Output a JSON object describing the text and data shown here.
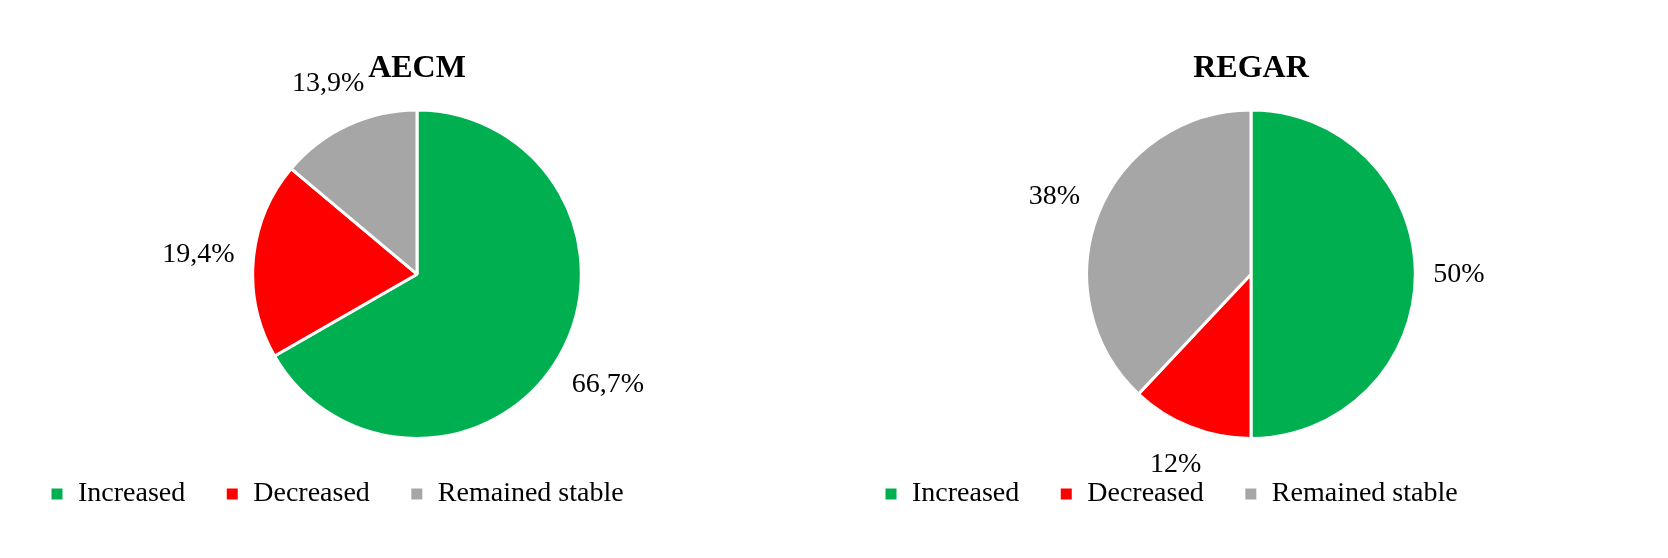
{
  "chart_data": [
    {
      "type": "pie",
      "title": "AECM",
      "categories": [
        "Increased",
        "Decreased",
        "Remained stable"
      ],
      "values": [
        66.7,
        19.4,
        13.9
      ],
      "colors": [
        "#00b050",
        "#ff0000",
        "#a6a6a6"
      ],
      "value_labels": [
        "66,7%",
        "19,4%",
        "13,9%"
      ],
      "legend": "bottom"
    },
    {
      "type": "pie",
      "title": "REGAR",
      "categories": [
        "Increased",
        "Decreased",
        "Remained stable"
      ],
      "values": [
        50,
        12,
        38
      ],
      "colors": [
        "#00b050",
        "#ff0000",
        "#a6a6a6"
      ],
      "value_labels": [
        "50%",
        "12%",
        "38%"
      ],
      "legend": "bottom"
    }
  ]
}
